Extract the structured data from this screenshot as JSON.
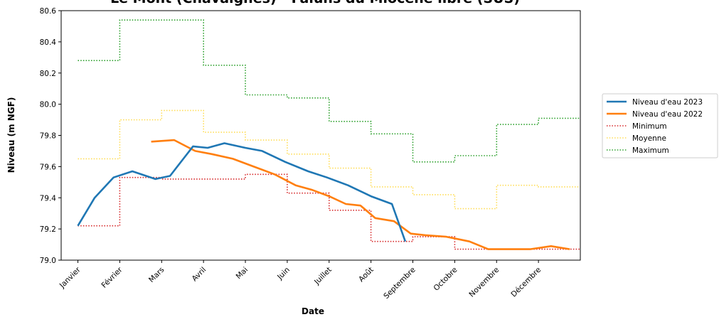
{
  "chart_data": {
    "type": "line",
    "title": "Le Mont (Chavaignes) - Faluns du Miocène libre (SUS)",
    "xlabel": "Date",
    "ylabel": "Niveau (m NGF)",
    "ylim": [
      79.0,
      80.6
    ],
    "yticks": [
      79.0,
      79.2,
      79.4,
      79.6,
      79.8,
      80.0,
      80.2,
      80.4,
      80.6
    ],
    "categories": [
      "Janvier",
      "Février",
      "Mars",
      "Avril",
      "Mai",
      "Juin",
      "Juillet",
      "Août",
      "Septembre",
      "Octobre",
      "Novembre",
      "Décembre"
    ],
    "grid": false,
    "legend_position": "right",
    "series": [
      {
        "name": "Niveau d'eau 2023",
        "style": "solid",
        "color": "#1f77b4",
        "points": [
          [
            0.0,
            79.22
          ],
          [
            0.4,
            79.4
          ],
          [
            0.85,
            79.53
          ],
          [
            1.3,
            79.57
          ],
          [
            1.85,
            79.52
          ],
          [
            2.2,
            79.54
          ],
          [
            2.75,
            79.73
          ],
          [
            3.1,
            79.72
          ],
          [
            3.5,
            79.75
          ],
          [
            4.0,
            79.72
          ],
          [
            4.4,
            79.7
          ],
          [
            4.95,
            79.63
          ],
          [
            5.5,
            79.57
          ],
          [
            5.95,
            79.53
          ],
          [
            6.45,
            79.48
          ],
          [
            7.0,
            79.41
          ],
          [
            7.5,
            79.36
          ],
          [
            7.82,
            79.12
          ]
        ]
      },
      {
        "name": "Niveau d'eau 2022",
        "style": "solid",
        "color": "#ff7f0e",
        "points": [
          [
            1.75,
            79.76
          ],
          [
            2.3,
            79.77
          ],
          [
            2.8,
            79.7
          ],
          [
            3.2,
            79.68
          ],
          [
            3.7,
            79.65
          ],
          [
            4.2,
            79.6
          ],
          [
            4.7,
            79.55
          ],
          [
            5.2,
            79.48
          ],
          [
            5.6,
            79.45
          ],
          [
            6.0,
            79.41
          ],
          [
            6.4,
            79.36
          ],
          [
            6.75,
            79.35
          ],
          [
            7.1,
            79.27
          ],
          [
            7.55,
            79.25
          ],
          [
            7.95,
            79.17
          ],
          [
            8.3,
            79.16
          ],
          [
            8.8,
            79.15
          ],
          [
            9.35,
            79.12
          ],
          [
            9.8,
            79.07
          ],
          [
            10.3,
            79.07
          ],
          [
            10.8,
            79.07
          ],
          [
            11.3,
            79.09
          ],
          [
            11.75,
            79.07
          ]
        ]
      },
      {
        "name": "Minimum",
        "style": "step-dotted",
        "color": "#d62728",
        "values": [
          79.22,
          79.53,
          79.52,
          79.52,
          79.55,
          79.43,
          79.32,
          79.12,
          79.15,
          79.07,
          79.07,
          79.07
        ]
      },
      {
        "name": "Moyenne",
        "style": "step-dotted",
        "color": "#ffdd55",
        "values": [
          79.65,
          79.9,
          79.96,
          79.82,
          79.77,
          79.68,
          79.59,
          79.47,
          79.42,
          79.33,
          79.48,
          79.47
        ]
      },
      {
        "name": "Maximum",
        "style": "step-dotted",
        "color": "#2ca02c",
        "values": [
          80.28,
          80.54,
          80.54,
          80.25,
          80.06,
          80.04,
          79.89,
          79.81,
          79.63,
          79.67,
          79.87,
          79.91
        ]
      }
    ]
  }
}
